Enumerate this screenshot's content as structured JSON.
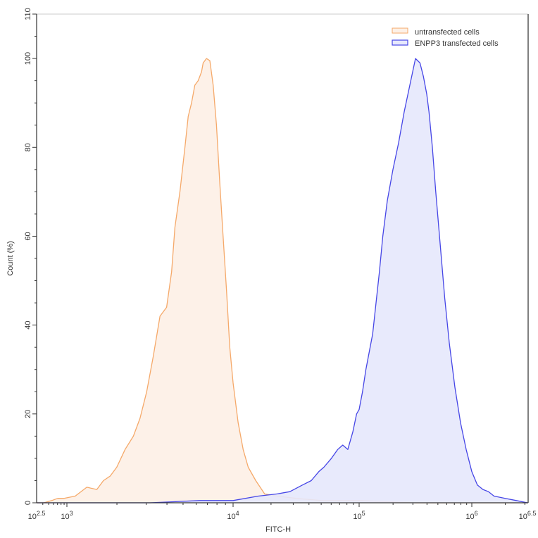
{
  "chart_data": {
    "type": "area",
    "title": "",
    "xlabel": "FITC-H",
    "ylabel": "Count (%)",
    "xscale": "log (biexponential display)",
    "xlim_log10": [
      2.5,
      6.5
    ],
    "ylim": [
      0,
      110
    ],
    "x_ticks": [
      {
        "label_base": "10",
        "label_exp": "2.5",
        "log10": 2.5
      },
      {
        "label_base": "10",
        "label_exp": "3",
        "log10": 3
      },
      {
        "label_base": "10",
        "label_exp": "4",
        "log10": 4
      },
      {
        "label_base": "10",
        "label_exp": "5",
        "log10": 5
      },
      {
        "label_base": "10",
        "label_exp": "6",
        "log10": 6
      },
      {
        "label_base": "10",
        "label_exp": "6.5",
        "log10": 6.5
      }
    ],
    "y_ticks": [
      "0",
      "20",
      "40",
      "60",
      "80",
      "100",
      "110"
    ],
    "grid": false,
    "legend_position": "top-right",
    "legend": [
      {
        "label": "untransfected cells",
        "stroke": "#f5a96a",
        "fill": "#fdf0e6"
      },
      {
        "label": "ENPP3 transfected cells",
        "stroke": "#4646e6",
        "fill": "#e6e8fc"
      }
    ],
    "series": [
      {
        "name": "untransfected cells",
        "stroke": "#f5a96a",
        "fill": "#fdf0e6",
        "x_log10": [
          2.5,
          2.62,
          2.75,
          2.85,
          2.95,
          3.05,
          3.12,
          3.18,
          3.22,
          3.26,
          3.3,
          3.35,
          3.4,
          3.44,
          3.48,
          3.52,
          3.56,
          3.6,
          3.63,
          3.65,
          3.68,
          3.71,
          3.73,
          3.75,
          3.77,
          3.79,
          3.81,
          3.82,
          3.84,
          3.86,
          3.88,
          3.9,
          3.92,
          3.94,
          3.96,
          3.98,
          4.0,
          4.04,
          4.08,
          4.12,
          4.18,
          4.25,
          4.35,
          4.5,
          4.7,
          5.0,
          5.5,
          6.0,
          6.5
        ],
        "y": [
          0,
          0,
          0.5,
          1,
          1,
          1.5,
          3.5,
          3,
          5,
          6,
          8,
          12,
          15,
          19,
          25,
          33,
          42,
          44,
          52,
          62,
          70,
          80,
          87,
          90,
          94,
          95,
          97,
          99,
          100,
          99.5,
          94,
          85,
          72,
          60,
          48,
          35,
          27,
          18,
          12,
          8,
          5,
          2,
          1.5,
          1,
          0.5,
          0.5,
          0,
          0,
          0
        ]
      },
      {
        "name": "ENPP3 transfected cells",
        "stroke": "#4646e6",
        "fill": "#e6e8fc",
        "x_log10": [
          2.5,
          3.5,
          3.8,
          4.0,
          4.2,
          4.35,
          4.45,
          4.55,
          4.62,
          4.68,
          4.72,
          4.78,
          4.83,
          4.87,
          4.91,
          4.95,
          4.98,
          5.0,
          5.03,
          5.06,
          5.09,
          5.12,
          5.15,
          5.18,
          5.21,
          5.25,
          5.3,
          5.35,
          5.4,
          5.45,
          5.5,
          5.54,
          5.57,
          5.6,
          5.62,
          5.65,
          5.68,
          5.72,
          5.76,
          5.8,
          5.85,
          5.9,
          5.95,
          6.0,
          6.05,
          6.1,
          6.15,
          6.2,
          6.3,
          6.4,
          6.5
        ],
        "y": [
          0,
          0,
          0.5,
          0.5,
          1.5,
          2,
          2.5,
          4,
          5,
          7,
          8,
          10,
          12,
          13,
          12,
          16,
          20,
          21,
          25,
          30,
          34,
          38,
          45,
          52,
          60,
          68,
          75,
          81,
          88,
          94,
          100,
          99,
          96,
          92,
          88,
          80,
          70,
          58,
          46,
          36,
          26,
          18,
          12,
          7,
          4,
          3,
          2.5,
          1.5,
          1,
          0.5,
          0
        ]
      }
    ]
  },
  "legend": {
    "items": [
      {
        "label": "untransfected cells"
      },
      {
        "label": "ENPP3 transfected cells"
      }
    ]
  },
  "axes": {
    "xlabel": "FITC-H",
    "ylabel": "Count (%)"
  }
}
